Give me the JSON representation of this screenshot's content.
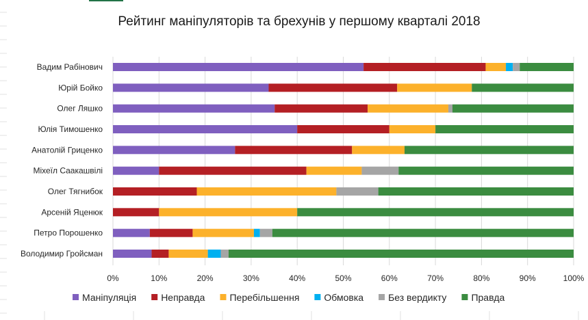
{
  "chart_data": {
    "type": "bar",
    "orientation": "horizontal",
    "stacked": "percent",
    "title": "Рейтинг маніпуляторів та брехунів у першому кварталі 2018",
    "xlabel": "",
    "ylabel": "",
    "xlim": [
      0,
      100
    ],
    "x_ticks": [
      "0%",
      "10%",
      "20%",
      "30%",
      "40%",
      "50%",
      "60%",
      "70%",
      "80%",
      "90%",
      "100%"
    ],
    "grid": true,
    "legend_position": "bottom",
    "categories": [
      "Вадим Рабінович",
      "Юрій Бойко",
      "Олег Ляшко",
      "Юлія Тимошенко",
      "Анатолій Гриценко",
      "Міхеїл Саакашвілі",
      "Олег Тягнибок",
      "Арсеній Яценюк",
      "Петро Порошенко",
      "Володимир Гройсман"
    ],
    "series": [
      {
        "name": "Маніпуляція",
        "color": "#7f5fbf",
        "values": [
          54.4,
          33.8,
          35.1,
          40,
          26.5,
          10,
          0,
          0,
          8.0,
          8.4
        ]
      },
      {
        "name": "Неправда",
        "color": "#b41f24",
        "values": [
          26.5,
          27.9,
          20.2,
          20,
          25.4,
          32,
          18.2,
          10,
          9.3,
          3.7
        ]
      },
      {
        "name": "Перебільшення",
        "color": "#fcb12b",
        "values": [
          4.4,
          16.2,
          17.5,
          10,
          11.4,
          12,
          30.3,
          30,
          13.3,
          8.5
        ]
      },
      {
        "name": "Обмовка",
        "color": "#00b0f0",
        "values": [
          1.5,
          0,
          0,
          0,
          0,
          0,
          0,
          0,
          1.3,
          2.8
        ]
      },
      {
        "name": "Без вердикту",
        "color": "#a5a5a5",
        "values": [
          1.5,
          0,
          0.9,
          0,
          0,
          8,
          9.1,
          0,
          2.7,
          1.7
        ]
      },
      {
        "name": "Правда",
        "color": "#3b8c40",
        "values": [
          11.7,
          22.1,
          26.3,
          30,
          36.7,
          38,
          42.4,
          60,
          65.4,
          74.9
        ]
      }
    ]
  }
}
